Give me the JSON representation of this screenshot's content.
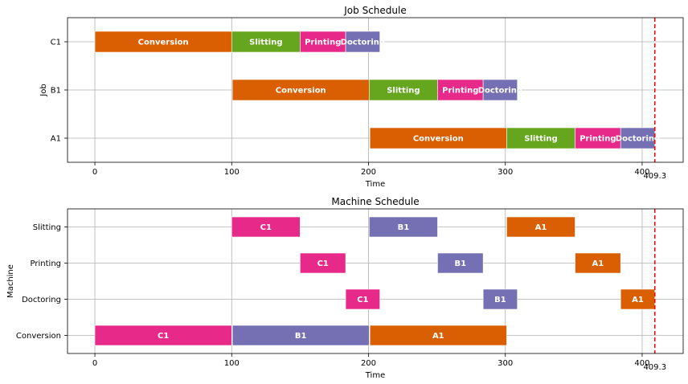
{
  "chart_data": [
    {
      "type": "gantt",
      "title": "Job Schedule",
      "xlabel": "Time",
      "ylabel": "Job",
      "xlim": [
        -20,
        430
      ],
      "xticks": [
        0,
        100,
        200,
        300,
        400
      ],
      "grid": true,
      "rows": [
        "A1",
        "B1",
        "C1"
      ],
      "marker": {
        "x": 409.3,
        "label": "409.3",
        "color": "#ff0000",
        "style": "dashed"
      },
      "colors": {
        "Conversion": "#d95f02",
        "Slitting": "#66a61e",
        "Printing": "#e7298a",
        "Doctoring": "#7570b3"
      },
      "tasks": [
        {
          "row": "C1",
          "start": 0,
          "end": 100,
          "label": "Conversion"
        },
        {
          "row": "C1",
          "start": 100,
          "end": 150,
          "label": "Slitting"
        },
        {
          "row": "C1",
          "start": 150,
          "end": 183.3,
          "label": "Printing"
        },
        {
          "row": "C1",
          "start": 183.3,
          "end": 208.3,
          "label": "Doctoring"
        },
        {
          "row": "B1",
          "start": 100.5,
          "end": 200.5,
          "label": "Conversion"
        },
        {
          "row": "B1",
          "start": 200.5,
          "end": 250.5,
          "label": "Slitting"
        },
        {
          "row": "B1",
          "start": 250.5,
          "end": 283.8,
          "label": "Printing"
        },
        {
          "row": "B1",
          "start": 283.8,
          "end": 308.8,
          "label": "Doctoring"
        },
        {
          "row": "A1",
          "start": 201,
          "end": 301,
          "label": "Conversion"
        },
        {
          "row": "A1",
          "start": 301,
          "end": 351,
          "label": "Slitting"
        },
        {
          "row": "A1",
          "start": 351,
          "end": 384.3,
          "label": "Printing"
        },
        {
          "row": "A1",
          "start": 384.3,
          "end": 409.3,
          "label": "Doctoring"
        }
      ]
    },
    {
      "type": "gantt",
      "title": "Machine Schedule",
      "xlabel": "Time",
      "ylabel": "Machine",
      "xlim": [
        -20,
        430
      ],
      "xticks": [
        0,
        100,
        200,
        300,
        400
      ],
      "grid": true,
      "rows": [
        "Conversion",
        "Doctoring",
        "Printing",
        "Slitting"
      ],
      "marker": {
        "x": 409.3,
        "label": "409.3",
        "color": "#ff0000",
        "style": "dashed"
      },
      "colors": {
        "C1": "#e7298a",
        "B1": "#7570b3",
        "A1": "#d95f02"
      },
      "tasks": [
        {
          "row": "Slitting",
          "start": 100,
          "end": 150,
          "label": "C1"
        },
        {
          "row": "Slitting",
          "start": 200.5,
          "end": 250.5,
          "label": "B1"
        },
        {
          "row": "Slitting",
          "start": 301,
          "end": 351,
          "label": "A1"
        },
        {
          "row": "Printing",
          "start": 150,
          "end": 183.3,
          "label": "C1"
        },
        {
          "row": "Printing",
          "start": 250.5,
          "end": 283.8,
          "label": "B1"
        },
        {
          "row": "Printing",
          "start": 351,
          "end": 384.3,
          "label": "A1"
        },
        {
          "row": "Doctoring",
          "start": 183.3,
          "end": 208.3,
          "label": "C1"
        },
        {
          "row": "Doctoring",
          "start": 283.8,
          "end": 308.8,
          "label": "B1"
        },
        {
          "row": "Doctoring",
          "start": 384.3,
          "end": 409.3,
          "label": "A1"
        },
        {
          "row": "Conversion",
          "start": 0,
          "end": 100,
          "label": "C1"
        },
        {
          "row": "Conversion",
          "start": 100.5,
          "end": 200.5,
          "label": "B1"
        },
        {
          "row": "Conversion",
          "start": 201,
          "end": 301,
          "label": "A1"
        }
      ]
    }
  ]
}
